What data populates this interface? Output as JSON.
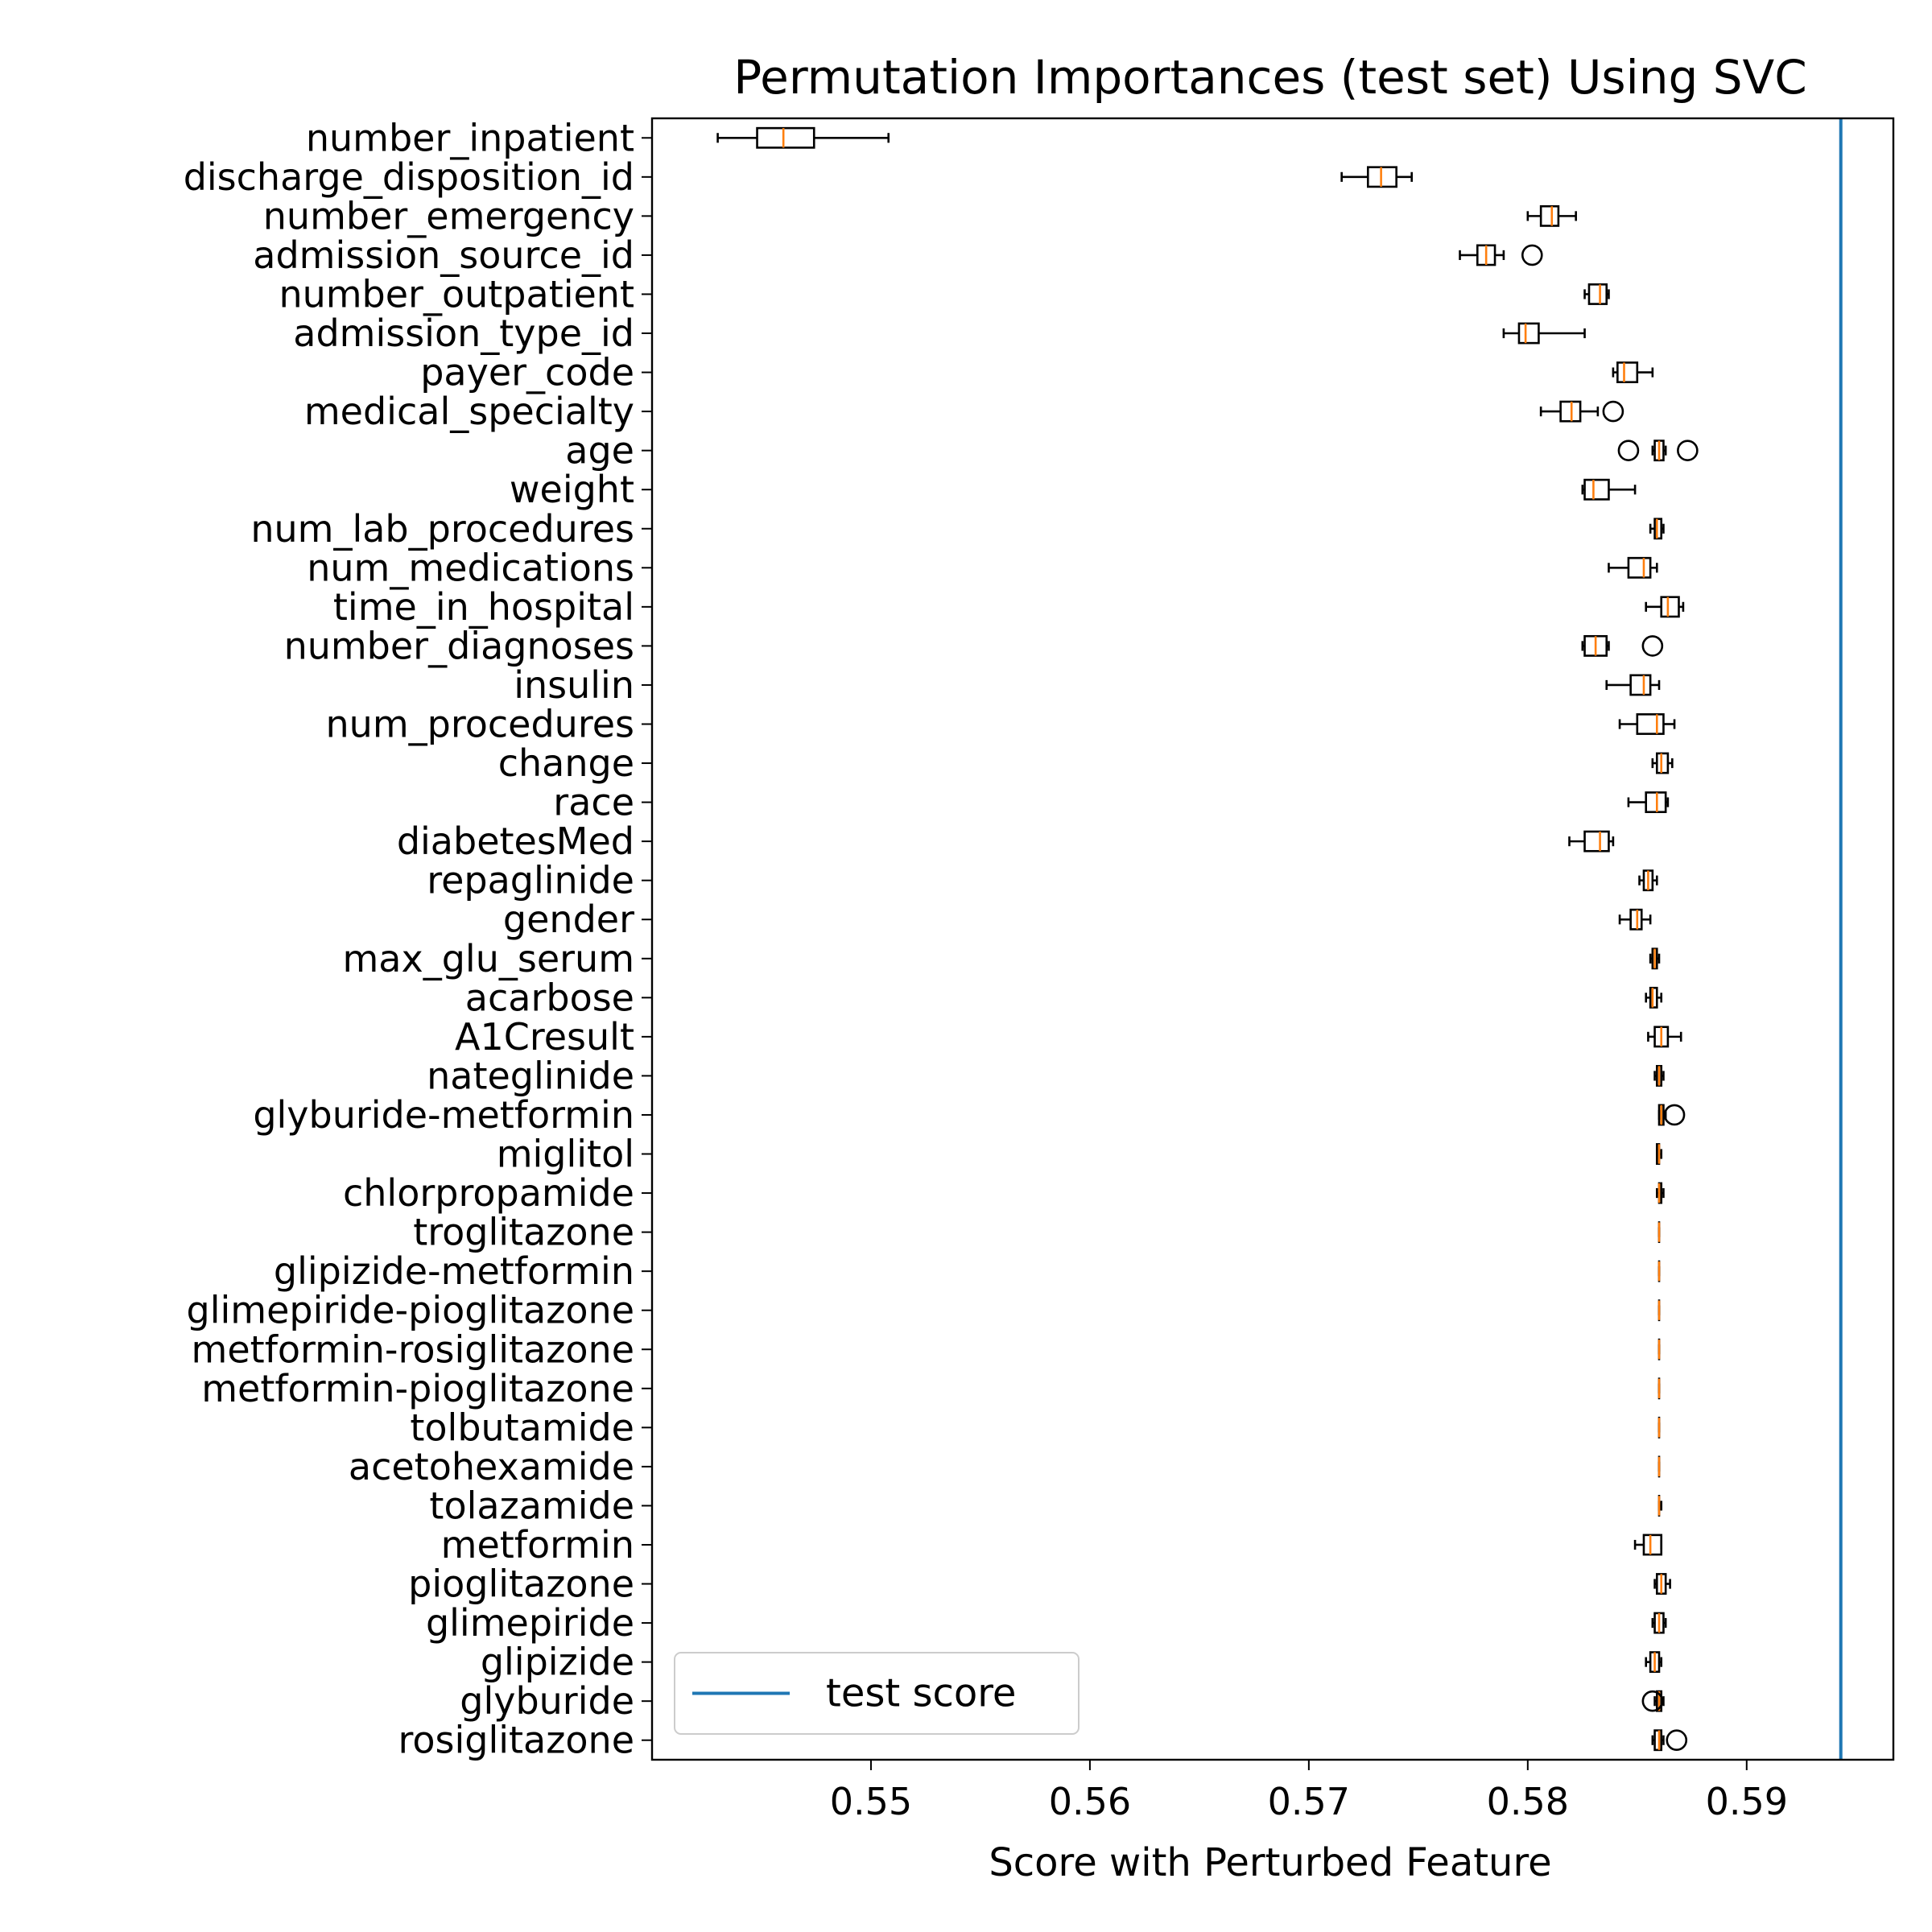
{
  "chart_data": {
    "type": "boxplot",
    "orientation": "horizontal",
    "title": "Permutation Importances (test set) Using SVC",
    "xlabel": "Score with Perturbed Feature",
    "ylabel": "",
    "xlim": [
      0.54,
      0.5967
    ],
    "xticks": [
      0.55,
      0.56,
      0.57,
      0.58,
      0.59
    ],
    "xtick_labels": [
      "0.55",
      "0.56",
      "0.57",
      "0.58",
      "0.59"
    ],
    "grid": false,
    "legend": {
      "placement": "lower-left",
      "entries": [
        "test score"
      ]
    },
    "test_score": 0.5943,
    "colors": {
      "box": "#000000",
      "median": "#ff7f0e",
      "test_line": "#1f77b4"
    },
    "features": [
      {
        "label": "number_inpatient",
        "whislo": 0.543,
        "q1": 0.5448,
        "med": 0.546,
        "q3": 0.5474,
        "whishi": 0.5508,
        "fliers": []
      },
      {
        "label": "discharge_disposition_id",
        "whislo": 0.5715,
        "q1": 0.5727,
        "med": 0.5733,
        "q3": 0.574,
        "whishi": 0.5747,
        "fliers": []
      },
      {
        "label": "number_emergency",
        "whislo": 0.58,
        "q1": 0.5806,
        "med": 0.5811,
        "q3": 0.5814,
        "whishi": 0.5822,
        "fliers": []
      },
      {
        "label": "admission_source_id",
        "whislo": 0.5769,
        "q1": 0.5777,
        "med": 0.5781,
        "q3": 0.5785,
        "whishi": 0.5789,
        "fliers": [
          0.5802
        ]
      },
      {
        "label": "number_outpatient",
        "whislo": 0.5826,
        "q1": 0.5828,
        "med": 0.5833,
        "q3": 0.5836,
        "whishi": 0.5837,
        "fliers": []
      },
      {
        "label": "admission_type_id",
        "whislo": 0.5789,
        "q1": 0.5796,
        "med": 0.5799,
        "q3": 0.5805,
        "whishi": 0.5826,
        "fliers": []
      },
      {
        "label": "payer_code",
        "whislo": 0.5839,
        "q1": 0.5841,
        "med": 0.5844,
        "q3": 0.585,
        "whishi": 0.5857,
        "fliers": []
      },
      {
        "label": "medical_specialty",
        "whislo": 0.5806,
        "q1": 0.5815,
        "med": 0.582,
        "q3": 0.5824,
        "whishi": 0.5832,
        "fliers": [
          0.5839
        ]
      },
      {
        "label": "age",
        "whislo": 0.5857,
        "q1": 0.5858,
        "med": 0.586,
        "q3": 0.5862,
        "whishi": 0.5863,
        "fliers": [
          0.5846,
          0.5873
        ]
      },
      {
        "label": "weight",
        "whislo": 0.5825,
        "q1": 0.5826,
        "med": 0.583,
        "q3": 0.5837,
        "whishi": 0.5849,
        "fliers": []
      },
      {
        "label": "num_lab_procedures",
        "whislo": 0.5856,
        "q1": 0.5858,
        "med": 0.5859,
        "q3": 0.5861,
        "whishi": 0.5862,
        "fliers": []
      },
      {
        "label": "num_medications",
        "whislo": 0.5837,
        "q1": 0.5846,
        "med": 0.5853,
        "q3": 0.5856,
        "whishi": 0.5859,
        "fliers": []
      },
      {
        "label": "time_in_hospital",
        "whislo": 0.5854,
        "q1": 0.5861,
        "med": 0.5864,
        "q3": 0.5869,
        "whishi": 0.5871,
        "fliers": []
      },
      {
        "label": "number_diagnoses",
        "whislo": 0.5825,
        "q1": 0.5826,
        "med": 0.5831,
        "q3": 0.5836,
        "whishi": 0.5837,
        "fliers": [
          0.5857
        ]
      },
      {
        "label": "insulin",
        "whislo": 0.5836,
        "q1": 0.5847,
        "med": 0.5853,
        "q3": 0.5856,
        "whishi": 0.586,
        "fliers": []
      },
      {
        "label": "num_procedures",
        "whislo": 0.5842,
        "q1": 0.585,
        "med": 0.5859,
        "q3": 0.5862,
        "whishi": 0.5867,
        "fliers": []
      },
      {
        "label": "change",
        "whislo": 0.5857,
        "q1": 0.5859,
        "med": 0.5861,
        "q3": 0.5864,
        "whishi": 0.5866,
        "fliers": []
      },
      {
        "label": "race",
        "whislo": 0.5846,
        "q1": 0.5854,
        "med": 0.5859,
        "q3": 0.5863,
        "whishi": 0.5864,
        "fliers": []
      },
      {
        "label": "diabetesMed",
        "whislo": 0.5819,
        "q1": 0.5826,
        "med": 0.5833,
        "q3": 0.5837,
        "whishi": 0.5839,
        "fliers": []
      },
      {
        "label": "repaglinide",
        "whislo": 0.5851,
        "q1": 0.5853,
        "med": 0.5855,
        "q3": 0.5857,
        "whishi": 0.5859,
        "fliers": []
      },
      {
        "label": "gender",
        "whislo": 0.5842,
        "q1": 0.5847,
        "med": 0.585,
        "q3": 0.5852,
        "whishi": 0.5856,
        "fliers": []
      },
      {
        "label": "max_glu_serum",
        "whislo": 0.5856,
        "q1": 0.5857,
        "med": 0.5858,
        "q3": 0.5859,
        "whishi": 0.586,
        "fliers": []
      },
      {
        "label": "acarbose",
        "whislo": 0.5854,
        "q1": 0.5856,
        "med": 0.5857,
        "q3": 0.5859,
        "whishi": 0.5861,
        "fliers": []
      },
      {
        "label": "A1Cresult",
        "whislo": 0.5855,
        "q1": 0.5858,
        "med": 0.5861,
        "q3": 0.5864,
        "whishi": 0.587,
        "fliers": []
      },
      {
        "label": "nateglinide",
        "whislo": 0.5858,
        "q1": 0.5859,
        "med": 0.586,
        "q3": 0.5861,
        "whishi": 0.5862,
        "fliers": []
      },
      {
        "label": "glyburide-metformin",
        "whislo": 0.586,
        "q1": 0.586,
        "med": 0.5861,
        "q3": 0.5862,
        "whishi": 0.5863,
        "fliers": [
          0.5867
        ]
      },
      {
        "label": "miglitol",
        "whislo": 0.5859,
        "q1": 0.5859,
        "med": 0.586,
        "q3": 0.586,
        "whishi": 0.5861,
        "fliers": []
      },
      {
        "label": "chlorpropamide",
        "whislo": 0.5859,
        "q1": 0.586,
        "med": 0.586,
        "q3": 0.5861,
        "whishi": 0.5862,
        "fliers": []
      },
      {
        "label": "troglitazone",
        "whislo": 0.586,
        "q1": 0.586,
        "med": 0.586,
        "q3": 0.586,
        "whishi": 0.586,
        "fliers": []
      },
      {
        "label": "glipizide-metformin",
        "whislo": 0.586,
        "q1": 0.586,
        "med": 0.586,
        "q3": 0.586,
        "whishi": 0.586,
        "fliers": []
      },
      {
        "label": "glimepiride-pioglitazone",
        "whislo": 0.586,
        "q1": 0.586,
        "med": 0.586,
        "q3": 0.586,
        "whishi": 0.586,
        "fliers": []
      },
      {
        "label": "metformin-rosiglitazone",
        "whislo": 0.586,
        "q1": 0.586,
        "med": 0.586,
        "q3": 0.586,
        "whishi": 0.586,
        "fliers": []
      },
      {
        "label": "metformin-pioglitazone",
        "whislo": 0.586,
        "q1": 0.586,
        "med": 0.586,
        "q3": 0.586,
        "whishi": 0.586,
        "fliers": []
      },
      {
        "label": "tolbutamide",
        "whislo": 0.586,
        "q1": 0.586,
        "med": 0.586,
        "q3": 0.586,
        "whishi": 0.586,
        "fliers": []
      },
      {
        "label": "acetohexamide",
        "whislo": 0.586,
        "q1": 0.586,
        "med": 0.586,
        "q3": 0.586,
        "whishi": 0.586,
        "fliers": []
      },
      {
        "label": "tolazamide",
        "whislo": 0.586,
        "q1": 0.586,
        "med": 0.586,
        "q3": 0.586,
        "whishi": 0.5861,
        "fliers": []
      },
      {
        "label": "metformin",
        "whislo": 0.5849,
        "q1": 0.5853,
        "med": 0.5856,
        "q3": 0.5861,
        "whishi": 0.5861,
        "fliers": []
      },
      {
        "label": "pioglitazone",
        "whislo": 0.5858,
        "q1": 0.5859,
        "med": 0.5861,
        "q3": 0.5863,
        "whishi": 0.5865,
        "fliers": []
      },
      {
        "label": "glimepiride",
        "whislo": 0.5857,
        "q1": 0.5858,
        "med": 0.586,
        "q3": 0.5862,
        "whishi": 0.5863,
        "fliers": []
      },
      {
        "label": "glipizide",
        "whislo": 0.5854,
        "q1": 0.5856,
        "med": 0.5858,
        "q3": 0.586,
        "whishi": 0.5861,
        "fliers": []
      },
      {
        "label": "glyburide",
        "whislo": 0.5858,
        "q1": 0.5859,
        "med": 0.586,
        "q3": 0.5861,
        "whishi": 0.5862,
        "fliers": [
          0.5857
        ]
      },
      {
        "label": "rosiglitazone",
        "whislo": 0.5857,
        "q1": 0.5858,
        "med": 0.586,
        "q3": 0.5861,
        "whishi": 0.5862,
        "fliers": [
          0.5868
        ]
      }
    ]
  }
}
